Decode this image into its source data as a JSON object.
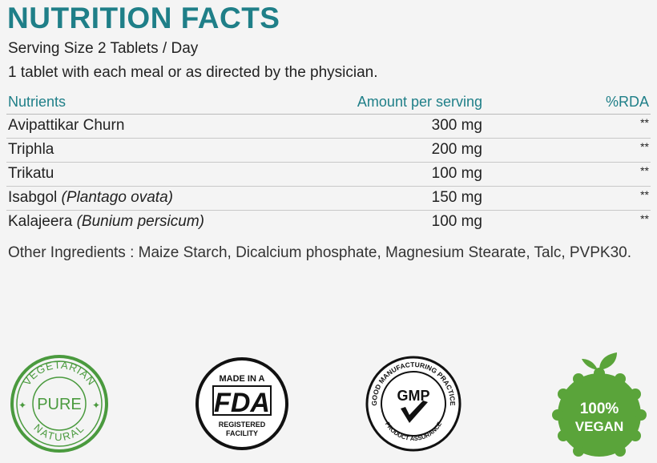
{
  "header": {
    "title": "NUTRITION FACTS",
    "serving": "Serving Size 2 Tablets / Day",
    "directions": "1 tablet with each meal or as directed by the physician."
  },
  "table": {
    "columns": [
      "Nutrients",
      "Amount per serving",
      "%RDA"
    ],
    "rows": [
      {
        "name": "Avipattikar Churn",
        "scientific": "",
        "amount": "300 mg",
        "rda": "**"
      },
      {
        "name": "Triphla",
        "scientific": "",
        "amount": "200 mg",
        "rda": "**"
      },
      {
        "name": "Trikatu",
        "scientific": "",
        "amount": "100 mg",
        "rda": "**"
      },
      {
        "name": "Isabgol ",
        "scientific": "(Plantago ovata)",
        "amount": "150 mg",
        "rda": "**"
      },
      {
        "name": "Kalajeera ",
        "scientific": "(Bunium persicum)",
        "amount": "100 mg",
        "rda": "**"
      }
    ]
  },
  "other_ingredients": "Other Ingredients : Maize Starch, Dicalcium phosphate, Magnesium Stearate, Talc, PVPK30.",
  "badges": {
    "vegetarian": {
      "top": "VEGETARIAN",
      "middle": "PURE",
      "bottom": "NATURAL",
      "color": "#4a9a3e"
    },
    "fda": {
      "top": "MADE IN A",
      "logo": "FDA",
      "bottom1": "REGISTERED",
      "bottom2": "FACILITY"
    },
    "gmp": {
      "top": "GOOD MANUFACTURING PRACTICE",
      "logo": "GMP",
      "bottom": "PRODUCT ASSURANCE"
    },
    "vegan": {
      "line1": "100%",
      "line2": "VEGAN",
      "color": "#5aa43a"
    }
  },
  "colors": {
    "accent": "#1f7f88",
    "background": "#f4f4f4"
  }
}
